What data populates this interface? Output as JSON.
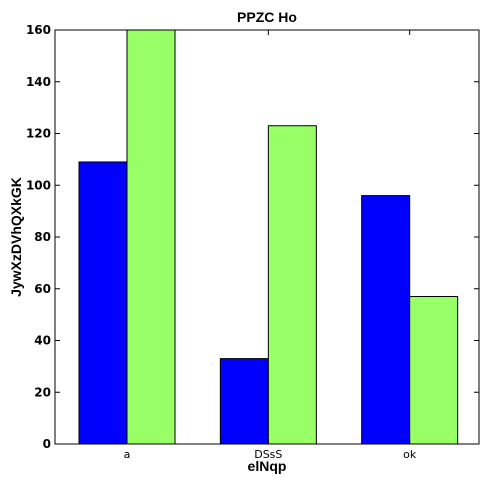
{
  "chart_data": {
    "type": "bar",
    "title": "PPZC Ho",
    "xlabel": "elNqp",
    "ylabel": "JywXzDVhQXkGK",
    "categories": [
      "a",
      "DSsS",
      "ok"
    ],
    "series": [
      {
        "values": [
          109,
          33,
          96
        ],
        "color": "#0000ff"
      },
      {
        "values": [
          160,
          123,
          57
        ],
        "color": "#99ff66"
      }
    ],
    "ylim": [
      0,
      160
    ],
    "yticks": [
      0,
      20,
      40,
      60,
      80,
      100,
      120,
      140,
      160
    ],
    "grid": false
  }
}
